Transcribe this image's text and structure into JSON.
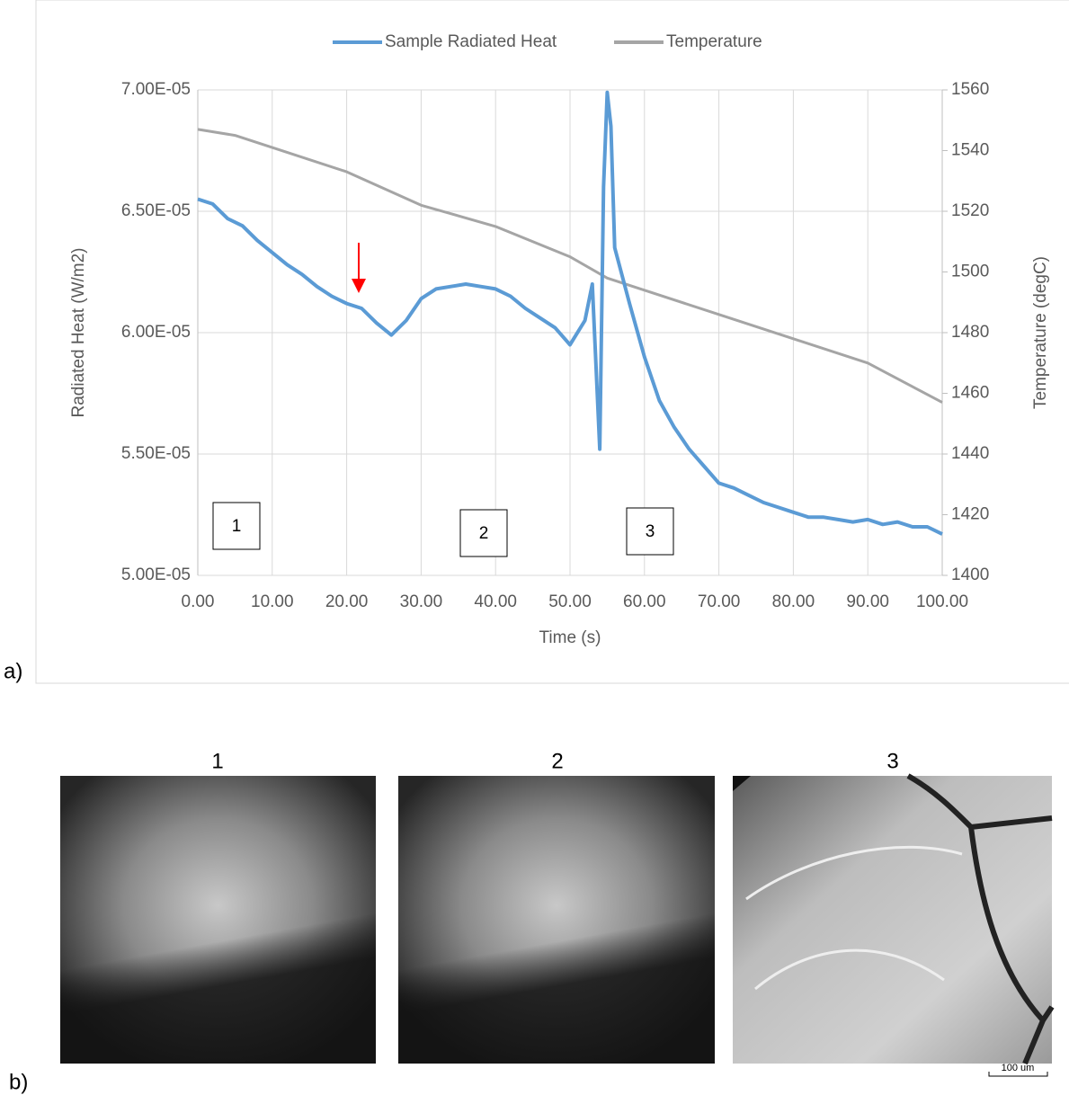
{
  "chart_data": {
    "type": "line",
    "xlabel": "Time (s)",
    "ylabel": "Radiated Heat (W/m2)",
    "y2label": "Temperature (degC)",
    "xlim": [
      0,
      100
    ],
    "xticks": [
      {
        "value": 0,
        "label": "0.00"
      },
      {
        "value": 10,
        "label": "10.00"
      },
      {
        "value": 20,
        "label": "20.00"
      },
      {
        "value": 30,
        "label": "30.00"
      },
      {
        "value": 40,
        "label": "40.00"
      },
      {
        "value": 50,
        "label": "50.00"
      },
      {
        "value": 60,
        "label": "60.00"
      },
      {
        "value": 70,
        "label": "70.00"
      },
      {
        "value": 80,
        "label": "80.00"
      },
      {
        "value": 90,
        "label": "90.00"
      },
      {
        "value": 100,
        "label": "100.00"
      }
    ],
    "ylim": [
      5e-05,
      7e-05
    ],
    "yticks": [
      {
        "value": 5e-05,
        "label": "5.00E-05"
      },
      {
        "value": 5.5e-05,
        "label": "5.50E-05"
      },
      {
        "value": 6e-05,
        "label": "6.00E-05"
      },
      {
        "value": 6.5e-05,
        "label": "6.50E-05"
      },
      {
        "value": 7e-05,
        "label": "7.00E-05"
      }
    ],
    "y2lim": [
      1400,
      1560
    ],
    "y2ticks": [
      1400,
      1420,
      1440,
      1460,
      1480,
      1500,
      1520,
      1540,
      1560
    ],
    "grid": true,
    "legend": "top",
    "series": [
      {
        "name": "Sample Radiated Heat",
        "color": "#5b9bd5",
        "x": [
          0,
          2,
          4,
          6,
          8,
          10,
          12,
          14,
          16,
          18,
          20,
          22,
          24,
          26,
          28,
          30,
          32,
          34,
          36,
          38,
          40,
          42,
          44,
          46,
          48,
          50,
          52,
          53,
          54,
          54.5,
          55,
          55.5,
          56,
          58,
          60,
          62,
          64,
          66,
          68,
          70,
          72,
          74,
          76,
          78,
          80,
          82,
          84,
          86,
          88,
          90,
          92,
          94,
          96,
          98,
          100
        ],
        "values": [
          6.55e-05,
          6.53e-05,
          6.47e-05,
          6.44e-05,
          6.38e-05,
          6.33e-05,
          6.28e-05,
          6.24e-05,
          6.19e-05,
          6.15e-05,
          6.12e-05,
          6.1e-05,
          6.04e-05,
          5.99e-05,
          6.05e-05,
          6.14e-05,
          6.18e-05,
          6.19e-05,
          6.2e-05,
          6.19e-05,
          6.18e-05,
          6.15e-05,
          6.1e-05,
          6.06e-05,
          6.02e-05,
          5.95e-05,
          6.05e-05,
          6.2e-05,
          5.52e-05,
          6.6e-05,
          6.99e-05,
          6.85e-05,
          6.35e-05,
          6.12e-05,
          5.9e-05,
          5.72e-05,
          5.61e-05,
          5.52e-05,
          5.45e-05,
          5.38e-05,
          5.36e-05,
          5.33e-05,
          5.3e-05,
          5.28e-05,
          5.26e-05,
          5.24e-05,
          5.24e-05,
          5.23e-05,
          5.22e-05,
          5.23e-05,
          5.21e-05,
          5.22e-05,
          5.2e-05,
          5.2e-05,
          5.17e-05
        ]
      },
      {
        "name": "Temperature",
        "color": "#a5a5a5",
        "axis": "y2",
        "x": [
          0,
          5,
          10,
          20,
          30,
          40,
          50,
          55,
          60,
          70,
          80,
          90,
          100
        ],
        "values": [
          1547,
          1545,
          1541,
          1533,
          1522,
          1515,
          1505,
          1498,
          1494,
          1486,
          1478,
          1470,
          1457
        ]
      }
    ],
    "annotations": [
      "1",
      "2",
      "3"
    ],
    "panel_label": "a)"
  },
  "images": {
    "panel_label": "b)",
    "titles": [
      "1",
      "2",
      "3"
    ],
    "scale_bar": "100 um"
  }
}
